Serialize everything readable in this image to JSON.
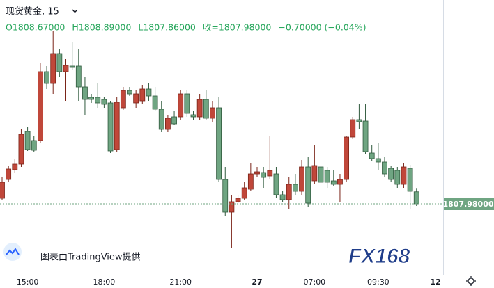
{
  "header": {
    "symbol": "现货黄金, 15",
    "legend": [
      "O1808.67000",
      "H1808.89000",
      "L1807.86000",
      "收=1807.98000",
      "−0.70000 (−0.04%)"
    ]
  },
  "watermark": {
    "provider": "图表由TradingView提供",
    "logo": "FX168"
  },
  "chart_data": {
    "type": "candlestick",
    "categories": [
      null,
      null,
      null,
      null,
      "15:00",
      null,
      null,
      null,
      null,
      null,
      null,
      null,
      null,
      null,
      null,
      null,
      "18:00",
      null,
      null,
      null,
      null,
      null,
      null,
      null,
      null,
      null,
      null,
      null,
      "21:00",
      null,
      null,
      null,
      null,
      null,
      null,
      null,
      null,
      null,
      null,
      null,
      "27",
      null,
      null,
      null,
      null,
      null,
      null,
      null,
      null,
      "07:00",
      null,
      null,
      null,
      null,
      null,
      null,
      null,
      null,
      null,
      "09:30",
      null,
      null,
      null,
      null,
      null,
      null,
      null,
      null,
      "12"
    ],
    "open": [
      1808.3,
      1809.38,
      1809.94,
      1810.26,
      1812.14,
      1811.62,
      1811.62,
      1815.58,
      1814.9,
      1816.62,
      1815.58,
      1815.9,
      1815.9,
      1814.7,
      1814.1,
      1814.1,
      1813.98,
      1813.78,
      1811.1,
      1813.5,
      1814.5,
      1813.78,
      1813.9,
      1814.58,
      1814.18,
      1813.42,
      1812.26,
      1812.98,
      1812.98,
      1814.3,
      1813.1,
      1812.98,
      1813.98,
      1812.9,
      1813.5,
      1809.38,
      1807.5,
      1808.1,
      1808.3,
      1808.82,
      1809.7,
      1809.78,
      1809.58,
      1809.7,
      1808.5,
      1808.22,
      1809.1,
      1808.7,
      1810.1,
      1809.3,
      1810.1,
      1809.9,
      1809.3,
      1809.1,
      1809.38,
      1811.82,
      1812.82,
      1812.74,
      1810.9,
      1810.58,
      1810.38,
      1810.02,
      1809.9,
      1809.1,
      1810.02,
      1808.67,
      null,
      null,
      null
    ],
    "high": [
      1809.5,
      1810.18,
      1810.58,
      1812.3,
      1812.38,
      1811.9,
      1816.1,
      1815.9,
      1817.9,
      1816.9,
      1816.3,
      1817.3,
      1816.9,
      1815.3,
      1814.3,
      1814.9,
      1814.1,
      1813.9,
      1814.1,
      1814.7,
      1814.7,
      1814.5,
      1814.82,
      1814.9,
      1814.7,
      1813.9,
      1813.1,
      1813.3,
      1814.5,
      1814.5,
      1813.3,
      1814.3,
      1814.5,
      1813.9,
      1814.1,
      1810.1,
      1808.5,
      1808.5,
      1809.22,
      1810.3,
      1810.1,
      1810.1,
      1811.9,
      1810.1,
      1808.7,
      1809.5,
      1809.7,
      1810.5,
      1810.7,
      1811.38,
      1810.3,
      1810.1,
      1809.9,
      1809.7,
      1811.9,
      1812.98,
      1813.7,
      1813.7,
      1811.38,
      1811.5,
      1810.7,
      1810.18,
      1810.1,
      1810.3,
      1810.22,
      1808.89,
      null,
      null,
      null
    ],
    "low": [
      1808.18,
      1809.22,
      1809.78,
      1810.1,
      1811.02,
      1810.98,
      1811.5,
      1814.58,
      1814.3,
      1815.3,
      1813.9,
      1815.7,
      1813.9,
      1813.1,
      1813.78,
      1813.5,
      1813.5,
      1810.9,
      1810.98,
      1813.38,
      1814.18,
      1813.5,
      1813.7,
      1813.9,
      1813.3,
      1812.1,
      1812.1,
      1812.5,
      1812.82,
      1812.98,
      1812.82,
      1812.82,
      1812.78,
      1812.7,
      1809.22,
      1807.3,
      1805.42,
      1808.02,
      1808.18,
      1808.7,
      1809.5,
      1808.9,
      1809.38,
      1808.3,
      1808.1,
      1807.7,
      1808.5,
      1808.5,
      1807.82,
      1809.1,
      1808.9,
      1808.9,
      1808.98,
      1808.1,
      1809.22,
      1811.7,
      1812.3,
      1810.82,
      1810.42,
      1809.9,
      1809.5,
      1809.22,
      1808.9,
      1808.9,
      1807.7,
      1807.86,
      null,
      null,
      null
    ],
    "close": [
      1809.22,
      1809.98,
      1810.26,
      1811.98,
      1811.1,
      1811.06,
      1815.58,
      1814.9,
      1816.62,
      1815.58,
      1815.94,
      1815.82,
      1814.7,
      1813.98,
      1813.98,
      1813.78,
      1813.7,
      1811.02,
      1813.82,
      1814.5,
      1814.3,
      1814.3,
      1814.58,
      1814.18,
      1813.42,
      1812.26,
      1812.9,
      1812.58,
      1814.3,
      1813.18,
      1812.98,
      1813.98,
      1812.9,
      1813.5,
      1809.38,
      1807.5,
      1808.1,
      1808.3,
      1808.9,
      1809.7,
      1809.82,
      1809.5,
      1809.9,
      1808.5,
      1808.22,
      1809.1,
      1808.7,
      1810.1,
      1808.02,
      1810.18,
      1809.22,
      1809.22,
      1809.1,
      1809.38,
      1811.82,
      1812.82,
      1812.7,
      1810.98,
      1810.58,
      1810.38,
      1809.7,
      1809.38,
      1809.1,
      1810.1,
      1808.7,
      1807.98,
      null,
      null,
      null
    ],
    "up_color": "#c0473a",
    "down_color": "#6fa582",
    "ylim": [
      1803.9,
      1819.7
    ],
    "last_price": {
      "value": 1807.98,
      "label": "1807.98000"
    }
  }
}
